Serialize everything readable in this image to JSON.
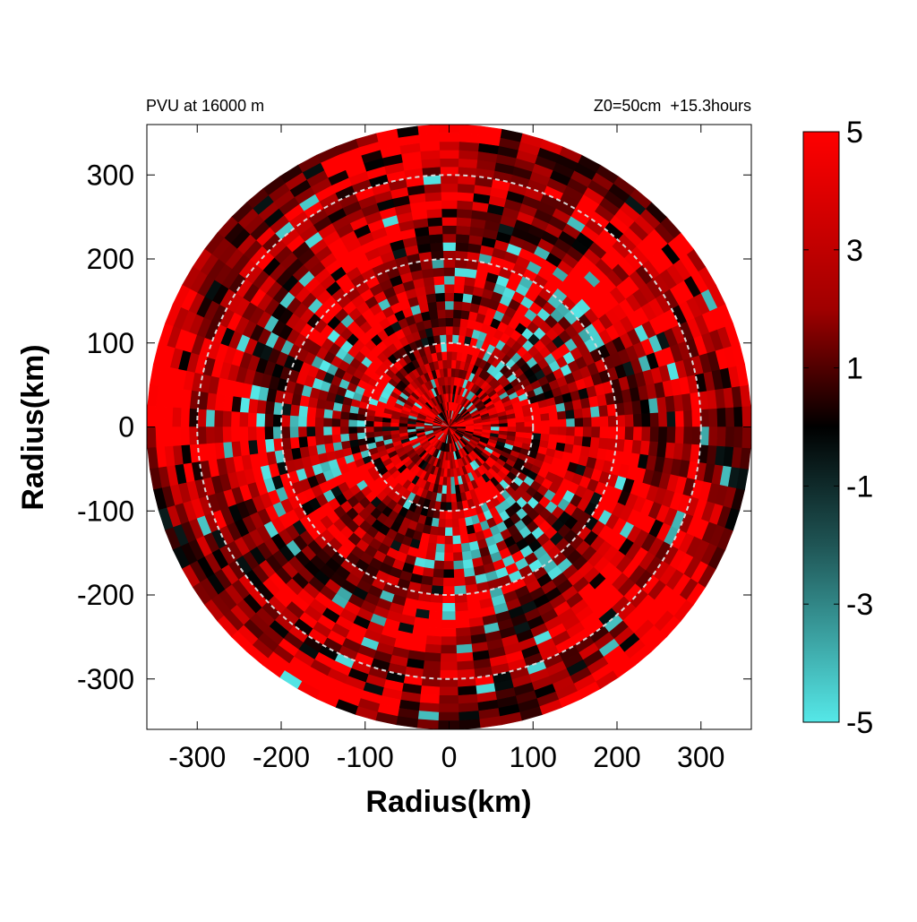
{
  "chart_data": {
    "type": "heatmap",
    "title_left": "PVU at 16000 m",
    "title_right": "Z0=50cm  +15.3hours",
    "xlabel": "Radius(km)",
    "ylabel": "Radius(km)",
    "xlim": [
      -360,
      360
    ],
    "ylim": [
      -360,
      360
    ],
    "xticks": [
      -300,
      -200,
      -100,
      0,
      100,
      200,
      300
    ],
    "yticks": [
      300,
      200,
      100,
      0,
      -100,
      -200,
      -300
    ],
    "xtick_labels": [
      "-300",
      "-200",
      "-100",
      "0",
      "100",
      "200",
      "300"
    ],
    "ytick_labels": [
      "300",
      "200",
      "100",
      "0",
      "-100",
      "-200",
      "-300"
    ],
    "domain_radius_km": 360,
    "range_rings_km": [
      100,
      200,
      300
    ],
    "colorbar": {
      "range": [
        -5,
        5
      ],
      "ticks": [
        5,
        3,
        1,
        -1,
        -3,
        -5
      ],
      "tick_labels": [
        "5",
        "3",
        "1",
        "-1",
        "-3",
        "-5"
      ],
      "colors": {
        "high": "#ff0000",
        "mid": "#000000",
        "low": "#55e8e8"
      }
    }
  }
}
